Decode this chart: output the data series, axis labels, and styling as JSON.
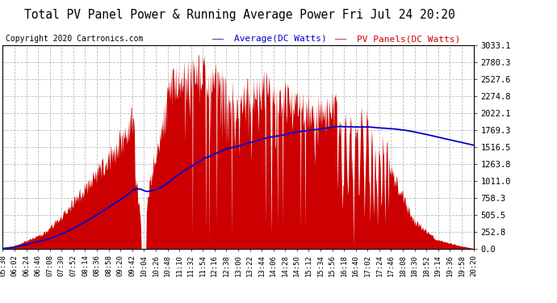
{
  "title": "Total PV Panel Power & Running Average Power Fri Jul 24 20:20",
  "copyright": "Copyright 2020 Cartronics.com",
  "legend_avg": "Average(DC Watts)",
  "legend_pv": "PV Panels(DC Watts)",
  "ylabel_values": [
    0.0,
    252.8,
    505.5,
    758.3,
    1011.0,
    1263.8,
    1516.5,
    1769.3,
    2022.1,
    2274.8,
    2527.6,
    2780.3,
    3033.1
  ],
  "ylim": [
    0,
    3033.1
  ],
  "bg_color": "#ffffff",
  "plot_bg_color": "#ffffff",
  "grid_color": "#bbbbbb",
  "pv_fill_color": "#cc0000",
  "avg_line_color": "#0000cc",
  "title_color": "#000000",
  "copyright_color": "#000000",
  "legend_avg_color": "#0000cc",
  "legend_pv_color": "#cc0000",
  "x_labels": [
    "05:38",
    "06:02",
    "06:24",
    "06:46",
    "07:08",
    "07:30",
    "07:52",
    "08:14",
    "08:36",
    "08:58",
    "09:20",
    "09:42",
    "10:04",
    "10:26",
    "10:48",
    "11:10",
    "11:32",
    "11:54",
    "12:16",
    "12:38",
    "13:00",
    "13:22",
    "13:44",
    "14:06",
    "14:28",
    "14:50",
    "15:12",
    "15:34",
    "15:56",
    "16:18",
    "16:40",
    "17:02",
    "17:24",
    "17:46",
    "18:08",
    "18:30",
    "18:52",
    "19:14",
    "19:36",
    "19:58",
    "20:20"
  ],
  "num_points": 820
}
